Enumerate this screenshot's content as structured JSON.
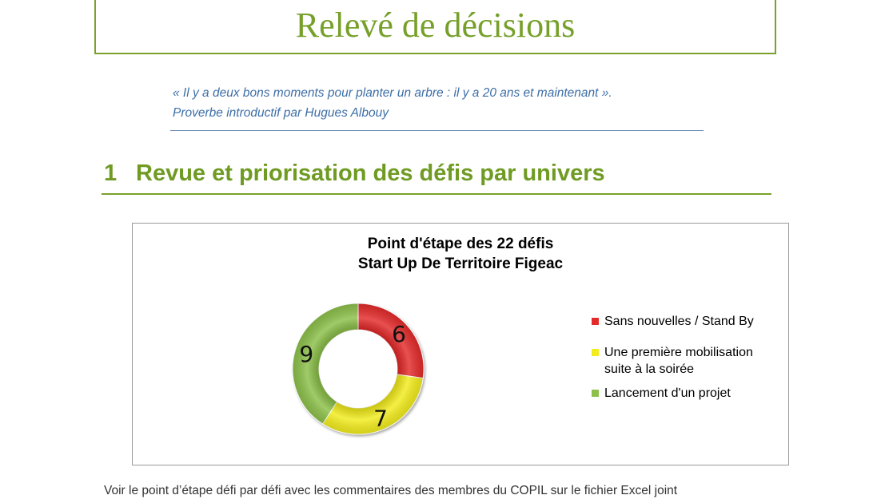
{
  "header": {
    "title": "Relevé de décisions"
  },
  "quote": {
    "line1": "« Il y a deux bons moments pour planter un arbre : il y a 20 ans et maintenant ».",
    "line2": "Proverbe introductif  par Hugues Albouy"
  },
  "section": {
    "number": "1",
    "title": "Revue et priorisation des défis par univers"
  },
  "chart_data": {
    "type": "pie",
    "variant": "donut",
    "title": "Point d'étape des 22 défis",
    "subtitle": "Start Up De Territoire Figeac",
    "categories": [
      "Sans nouvelles / Stand By",
      "Une première mobilisation suite à la soirée",
      "Lancement d'un projet"
    ],
    "values": [
      6,
      7,
      9
    ],
    "colors": [
      "#e42b2b",
      "#f2ec1c",
      "#8cc04a"
    ],
    "legend_position": "right"
  },
  "legend": {
    "items": [
      {
        "label": "Sans nouvelles / Stand By"
      },
      {
        "label_line1": "Une première mobilisation",
        "label_line2": "suite à la soirée"
      },
      {
        "label": "Lancement d'un projet"
      }
    ]
  },
  "footer": {
    "text": "Voir le point d’étape défi par défi avec les commentaires des membres du COPIL sur le fichier Excel joint"
  }
}
